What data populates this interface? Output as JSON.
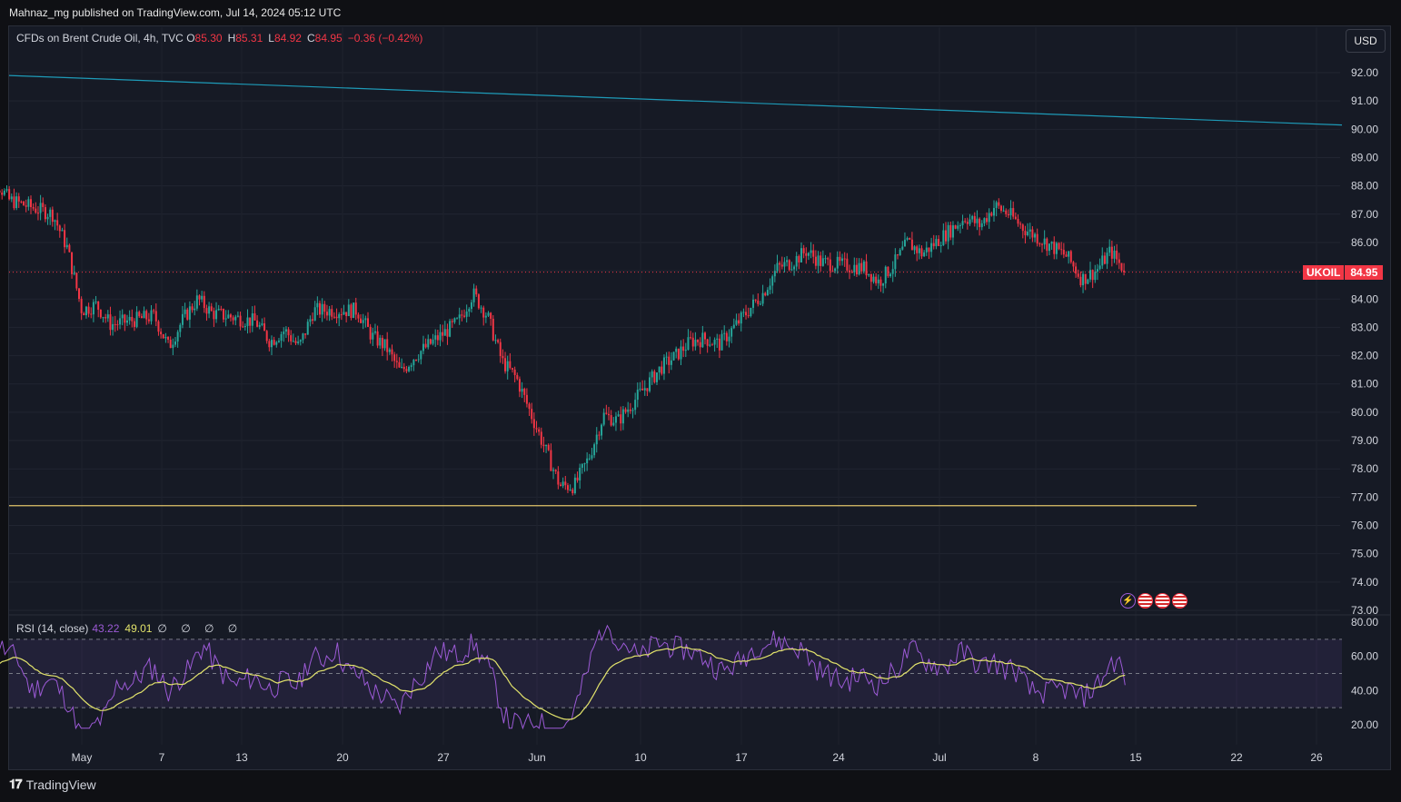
{
  "header": {
    "publisher": "Mahnaz_mg published on TradingView.com, Jul 14, 2024 05:12 UTC"
  },
  "legend": {
    "symbol": "CFDs on Brent Crude Oil, 4h, TVC",
    "open_label": "O",
    "open": "85.30",
    "high_label": "H",
    "high": "85.31",
    "low_label": "L",
    "low": "84.92",
    "close_label": "C",
    "close": "84.95",
    "change": "−0.36 (−0.42%)"
  },
  "currency": "USD",
  "last_price": {
    "symbol": "UKOIL",
    "value": "84.95"
  },
  "rsi_legend": {
    "name": "RSI (14, close)",
    "rsi": "43.22",
    "ma": "49.01",
    "extra": "∅ ∅ ∅ ∅"
  },
  "events": [
    "lightning-icon",
    "us-flag-icon",
    "us-flag-icon",
    "us-flag-icon"
  ],
  "brand": {
    "name": "TradingView"
  },
  "colors": {
    "up": "#26a69a",
    "down": "#f23645",
    "trendline": "#1e9bb8",
    "support": "#e0c36a",
    "rsi": "#9c5ad6",
    "rsi_ma": "#e2e36b",
    "background": "#161a25"
  },
  "chart_data": {
    "type": "candlestick",
    "price_axis": {
      "ticks": [
        "92.00",
        "91.00",
        "90.00",
        "89.00",
        "88.00",
        "87.00",
        "86.00",
        "85.00",
        "84.00",
        "83.00",
        "82.00",
        "81.00",
        "80.00",
        "79.00",
        "78.00",
        "77.00",
        "76.00",
        "75.00",
        "74.00",
        "73.00"
      ],
      "ylim": [
        73.0,
        92.9
      ]
    },
    "time_axis": {
      "labels": [
        "May",
        "7",
        "13",
        "20",
        "27",
        "Jun",
        "10",
        "17",
        "24",
        "Jul",
        "8",
        "15",
        "22",
        "26"
      ]
    },
    "last_price": 84.95,
    "trendline": {
      "from": [
        "Apr 24",
        91.9
      ],
      "to": [
        "Jul 27",
        90.15
      ]
    },
    "support_line": 76.7,
    "approx_close_path": [
      [
        "Apr 24",
        86.5
      ],
      [
        "Apr 25",
        88.2
      ],
      [
        "Apr 26",
        87.5
      ],
      [
        "Apr 29",
        87.0
      ],
      [
        "Apr 30",
        85.8
      ],
      [
        "May 1",
        83.6
      ],
      [
        "May 2",
        83.8
      ],
      [
        "May 3",
        83.1
      ],
      [
        "May 6",
        83.4
      ],
      [
        "May 7",
        82.3
      ],
      [
        "May 8",
        83.3
      ],
      [
        "May 9",
        84.0
      ],
      [
        "May 10",
        83.5
      ],
      [
        "May 13",
        83.2
      ],
      [
        "May 14",
        82.5
      ],
      [
        "May 15",
        82.9
      ],
      [
        "May 16",
        82.3
      ],
      [
        "May 17",
        83.6
      ],
      [
        "May 20",
        83.6
      ],
      [
        "May 21",
        82.7
      ],
      [
        "May 22",
        82.3
      ],
      [
        "May 23",
        81.4
      ],
      [
        "May 24",
        82.0
      ],
      [
        "May 27",
        83.2
      ],
      [
        "May 28",
        84.2
      ],
      [
        "May 29",
        83.4
      ],
      [
        "May 30",
        81.8
      ],
      [
        "May 31",
        81.2
      ],
      [
        "Jun 3",
        77.4
      ],
      [
        "Jun 4",
        77.4
      ],
      [
        "Jun 5",
        78.4
      ],
      [
        "Jun 6",
        79.9
      ],
      [
        "Jun 7",
        79.7
      ],
      [
        "Jun 10",
        81.6
      ],
      [
        "Jun 11",
        82.0
      ],
      [
        "Jun 12",
        82.5
      ],
      [
        "Jun 13",
        82.6
      ],
      [
        "Jun 14",
        82.4
      ],
      [
        "Jun 17",
        84.2
      ],
      [
        "Jun 18",
        85.1
      ],
      [
        "Jun 19",
        85.3
      ],
      [
        "Jun 20",
        85.7
      ],
      [
        "Jun 21",
        85.3
      ],
      [
        "Jun 24",
        85.1
      ],
      [
        "Jun 25",
        84.6
      ],
      [
        "Jun 26",
        85.2
      ],
      [
        "Jun 27",
        86.0
      ],
      [
        "Jun 28",
        85.6
      ],
      [
        "Jul 1",
        86.9
      ],
      [
        "Jul 2",
        86.6
      ],
      [
        "Jul 3",
        87.3
      ],
      [
        "Jul 4",
        87.0
      ],
      [
        "Jul 5",
        86.5
      ],
      [
        "Jul 8",
        85.5
      ],
      [
        "Jul 9",
        84.7
      ],
      [
        "Jul 10",
        85.0
      ],
      [
        "Jul 11",
        85.7
      ],
      [
        "Jul 12",
        84.95
      ]
    ],
    "rsi": {
      "period": 14,
      "ylim": [
        15,
        82
      ],
      "ticks": [
        "80.00",
        "60.00",
        "40.00",
        "20.00"
      ],
      "bands": [
        70,
        50,
        30
      ],
      "last": 43.22,
      "ma_last": 49.01
    }
  }
}
